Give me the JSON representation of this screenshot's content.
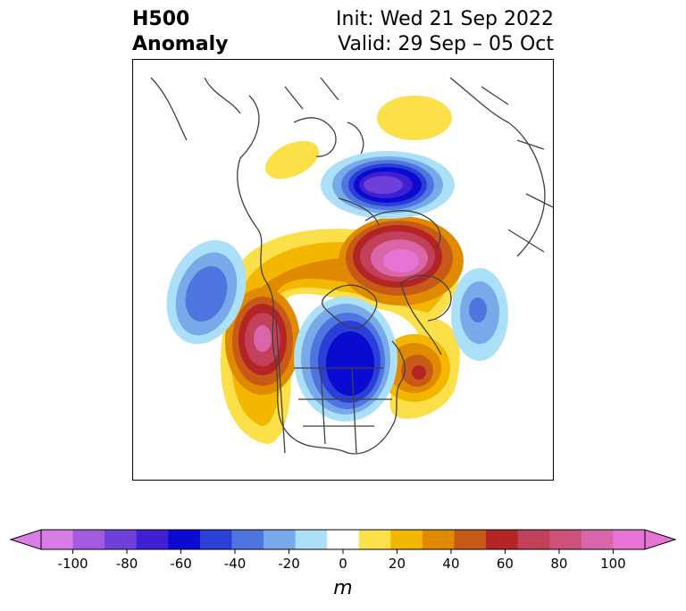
{
  "title": {
    "left_line1": "H500",
    "left_line2": "Anomaly",
    "right_line1": "Init: Wed 21 Sep 2022",
    "right_line2": "Valid: 29 Sep – 05 Oct"
  },
  "colorbar": {
    "unit": "m",
    "ticks": [
      "-100",
      "-80",
      "-60",
      "-40",
      "-20",
      "0",
      "20",
      "40",
      "60",
      "80",
      "100"
    ],
    "colors": [
      "#d97ee6",
      "#a15ae0",
      "#6e3fd9",
      "#3f1fd1",
      "#0a0ad0",
      "#2a3fd8",
      "#4e75e0",
      "#78aaea",
      "#ace0f8",
      "#ffffff",
      "#fbe04a",
      "#f3b700",
      "#e08a00",
      "#c85a18",
      "#b42424",
      "#c2405a",
      "#cd517a",
      "#d966a8",
      "#e574d4"
    ],
    "extend_low": "#d97ee6",
    "extend_high": "#e574d4"
  },
  "map": {
    "projection": "north-polar-stereographic",
    "region": "North America / Northern Hemisphere"
  }
}
